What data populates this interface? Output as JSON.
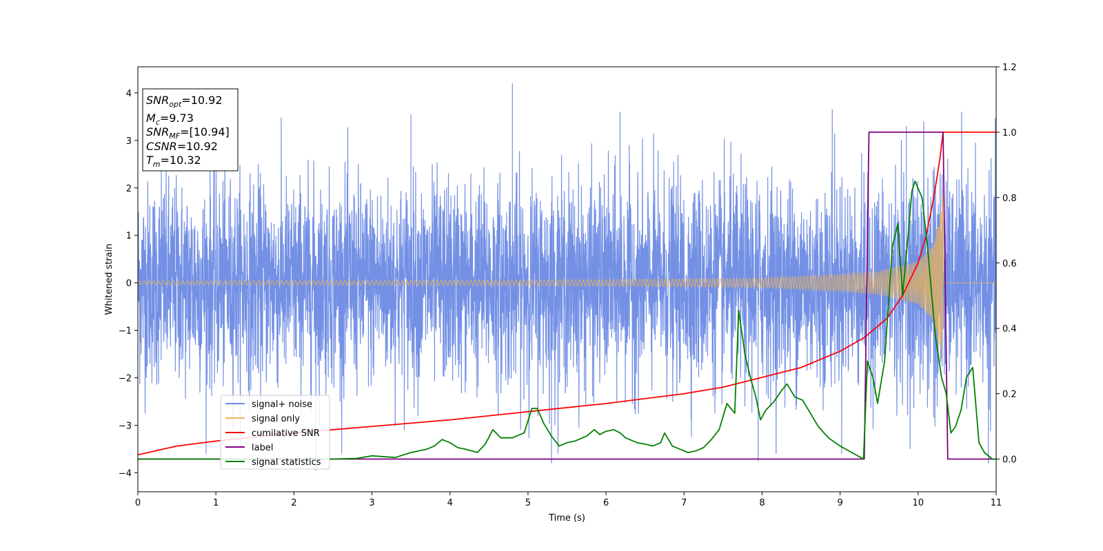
{
  "chart_data": {
    "type": "line",
    "xlabel": "Time (s)",
    "ylabel": "Whitened strain",
    "xlim": [
      0,
      11
    ],
    "ylim_left": [
      -4.4,
      4.55
    ],
    "ylim_right": [
      -0.1,
      1.2
    ],
    "xticks": [
      "0",
      "1",
      "2",
      "3",
      "4",
      "5",
      "6",
      "7",
      "8",
      "9",
      "10",
      "11"
    ],
    "yticks_left": [
      "−4",
      "−3",
      "−2",
      "−1",
      "0",
      "1",
      "2",
      "3",
      "4"
    ],
    "yticks_right": [
      "0.0",
      "0.2",
      "0.4",
      "0.6",
      "0.8",
      "1.0",
      "1.2"
    ],
    "grid": false,
    "legend": {
      "position": "lower-left",
      "entries": [
        {
          "label": "signal+ noise",
          "color": "#6c8ae4"
        },
        {
          "label": "signal only",
          "color": "#f2b550"
        },
        {
          "label": "cumilative SNR",
          "color": "#ff0000"
        },
        {
          "label": "label",
          "color": "#800080"
        },
        {
          "label": "signal statistics",
          "color": "#008000"
        }
      ]
    },
    "annotation": {
      "lines": [
        {
          "name": "SNR",
          "sub": "opt",
          "value": "=10.92"
        },
        {
          "name": "M",
          "sub": "c",
          "value": "=9.73"
        },
        {
          "name": "SNR",
          "sub": "MF",
          "value": "=[10.94]"
        },
        {
          "name": "CSNR",
          "sub": "",
          "value": "=10.92"
        },
        {
          "name": "T",
          "sub": "m",
          "value": "=10.32"
        }
      ]
    },
    "series": [
      {
        "name": "signal+ noise",
        "axis": "left",
        "color": "#6c8ae4",
        "description_noise": "random gaussian noise, std ~1.05, spikes to ~4.2",
        "spikes": [
          [
            4.8,
            4.2
          ],
          [
            2.28,
            -3.95
          ],
          [
            5.3,
            -3.8
          ],
          [
            7.95,
            -3.75
          ],
          [
            10.9,
            -3.8
          ],
          [
            8.9,
            3.65
          ],
          [
            9.85,
            3.3
          ],
          [
            0.3,
            3.5
          ],
          [
            3.5,
            3.55
          ],
          [
            6.18,
            3.6
          ]
        ]
      },
      {
        "name": "signal only",
        "axis": "left",
        "color": "#f2b550",
        "amplitude_envelope": [
          [
            0,
            0.04
          ],
          [
            3,
            0.05
          ],
          [
            6,
            0.07
          ],
          [
            8,
            0.1
          ],
          [
            9,
            0.18
          ],
          [
            9.5,
            0.25
          ],
          [
            10,
            0.45
          ],
          [
            10.2,
            0.8
          ],
          [
            10.3,
            1.6
          ],
          [
            10.32,
            2.0
          ],
          [
            10.33,
            0.0
          ],
          [
            11,
            0.0
          ]
        ]
      },
      {
        "name": "cumilative SNR",
        "axis": "right",
        "color": "#ff0000",
        "points": [
          [
            0,
            0.013
          ],
          [
            0.5,
            0.04
          ],
          [
            1,
            0.055
          ],
          [
            2,
            0.08
          ],
          [
            3,
            0.1
          ],
          [
            4,
            0.12
          ],
          [
            5,
            0.145
          ],
          [
            6,
            0.17
          ],
          [
            7,
            0.2
          ],
          [
            7.5,
            0.22
          ],
          [
            8,
            0.25
          ],
          [
            8.5,
            0.28
          ],
          [
            9,
            0.33
          ],
          [
            9.3,
            0.37
          ],
          [
            9.6,
            0.43
          ],
          [
            9.8,
            0.5
          ],
          [
            10,
            0.6
          ],
          [
            10.1,
            0.68
          ],
          [
            10.2,
            0.8
          ],
          [
            10.28,
            0.92
          ],
          [
            10.32,
            1.0
          ],
          [
            11,
            1.0
          ]
        ]
      },
      {
        "name": "label",
        "axis": "right",
        "color": "#800080",
        "points": [
          [
            0,
            0.0
          ],
          [
            9.31,
            0.0
          ],
          [
            9.37,
            1.0
          ],
          [
            10.32,
            1.0
          ],
          [
            10.38,
            0.0
          ],
          [
            11,
            0.0
          ]
        ]
      },
      {
        "name": "signal statistics",
        "axis": "right",
        "color": "#008000",
        "points": [
          [
            0,
            0.0
          ],
          [
            2.5,
            0.0
          ],
          [
            2.8,
            0.002
          ],
          [
            3.0,
            0.01
          ],
          [
            3.3,
            0.005
          ],
          [
            3.5,
            0.02
          ],
          [
            3.7,
            0.03
          ],
          [
            3.8,
            0.04
          ],
          [
            3.9,
            0.06
          ],
          [
            4.0,
            0.05
          ],
          [
            4.1,
            0.035
          ],
          [
            4.2,
            0.03
          ],
          [
            4.35,
            0.02
          ],
          [
            4.45,
            0.045
          ],
          [
            4.55,
            0.09
          ],
          [
            4.65,
            0.065
          ],
          [
            4.8,
            0.065
          ],
          [
            4.95,
            0.08
          ],
          [
            5.05,
            0.155
          ],
          [
            5.12,
            0.155
          ],
          [
            5.2,
            0.11
          ],
          [
            5.3,
            0.07
          ],
          [
            5.4,
            0.04
          ],
          [
            5.5,
            0.05
          ],
          [
            5.6,
            0.055
          ],
          [
            5.75,
            0.07
          ],
          [
            5.85,
            0.09
          ],
          [
            5.92,
            0.075
          ],
          [
            6.0,
            0.085
          ],
          [
            6.1,
            0.09
          ],
          [
            6.18,
            0.08
          ],
          [
            6.25,
            0.065
          ],
          [
            6.3,
            0.06
          ],
          [
            6.4,
            0.05
          ],
          [
            6.52,
            0.045
          ],
          [
            6.6,
            0.04
          ],
          [
            6.7,
            0.05
          ],
          [
            6.75,
            0.08
          ],
          [
            6.85,
            0.04
          ],
          [
            6.95,
            0.03
          ],
          [
            7.05,
            0.02
          ],
          [
            7.15,
            0.025
          ],
          [
            7.25,
            0.035
          ],
          [
            7.35,
            0.06
          ],
          [
            7.45,
            0.09
          ],
          [
            7.55,
            0.17
          ],
          [
            7.65,
            0.14
          ],
          [
            7.7,
            0.455
          ],
          [
            7.78,
            0.32
          ],
          [
            7.85,
            0.25
          ],
          [
            7.92,
            0.19
          ],
          [
            7.98,
            0.12
          ],
          [
            8.05,
            0.15
          ],
          [
            8.15,
            0.175
          ],
          [
            8.25,
            0.21
          ],
          [
            8.32,
            0.23
          ],
          [
            8.42,
            0.19
          ],
          [
            8.52,
            0.18
          ],
          [
            8.62,
            0.14
          ],
          [
            8.72,
            0.1
          ],
          [
            8.85,
            0.065
          ],
          [
            9.0,
            0.04
          ],
          [
            9.15,
            0.02
          ],
          [
            9.3,
            0.0
          ],
          [
            9.35,
            0.3
          ],
          [
            9.42,
            0.25
          ],
          [
            9.48,
            0.17
          ],
          [
            9.57,
            0.3
          ],
          [
            9.67,
            0.65
          ],
          [
            9.74,
            0.72
          ],
          [
            9.8,
            0.5
          ],
          [
            9.87,
            0.68
          ],
          [
            9.92,
            0.82
          ],
          [
            9.96,
            0.85
          ],
          [
            10.05,
            0.8
          ],
          [
            10.12,
            0.65
          ],
          [
            10.22,
            0.38
          ],
          [
            10.3,
            0.25
          ],
          [
            10.36,
            0.2
          ],
          [
            10.42,
            0.08
          ],
          [
            10.48,
            0.1
          ],
          [
            10.55,
            0.15
          ],
          [
            10.62,
            0.25
          ],
          [
            10.7,
            0.28
          ],
          [
            10.78,
            0.05
          ],
          [
            10.85,
            0.02
          ],
          [
            10.95,
            0.0
          ],
          [
            11.0,
            0.0
          ]
        ]
      }
    ]
  }
}
